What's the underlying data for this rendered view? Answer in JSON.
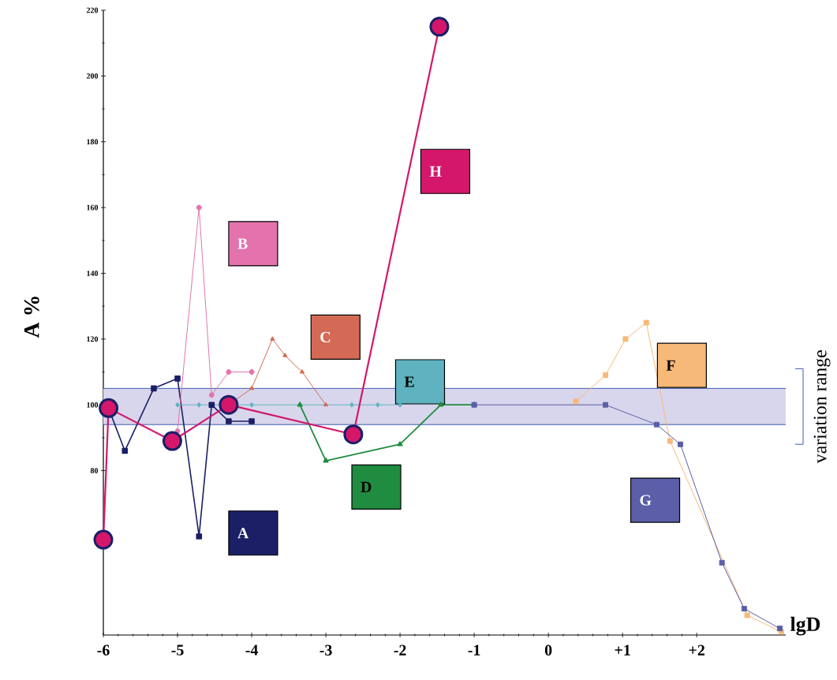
{
  "chart_data": {
    "type": "line",
    "xlabel": "lgD",
    "ylabel": "A %",
    "xlim": [
      -6,
      3.2
    ],
    "ylim": [
      30,
      220
    ],
    "xticks": [
      -6,
      -5,
      -4,
      -3,
      -2,
      -1,
      0,
      {
        "value": 1,
        "label": "+1"
      },
      {
        "value": 2,
        "label": "+2"
      }
    ],
    "yticks": [
      80,
      100,
      120,
      140,
      160,
      180,
      200,
      220
    ],
    "bands": [
      {
        "axis": "y",
        "from": 94,
        "to": 105,
        "label": "variation range",
        "color": "#d8d6ec"
      }
    ],
    "ref_lines": [
      {
        "axis": "y",
        "value": 94,
        "color": "#3a5bb5"
      },
      {
        "axis": "y",
        "value": 105,
        "color": "#3a5bb5"
      }
    ],
    "series": [
      {
        "name": "A",
        "color": "#1b1f66",
        "marker": "square",
        "x": [
          -5.93,
          -5.71,
          -5.32,
          -5.0,
          -4.71,
          -4.54,
          -4.31,
          -4.0
        ],
        "values": [
          99,
          86,
          105,
          108,
          60,
          100,
          95,
          95
        ]
      },
      {
        "name": "B",
        "color": "#e473ad",
        "marker": "circle",
        "x": [
          -5.0,
          -4.71,
          -4.54,
          -4.31,
          -4.0
        ],
        "values": [
          92,
          160,
          103,
          110,
          110
        ]
      },
      {
        "name": "C",
        "color": "#d46a55",
        "marker": "triangle",
        "x": [
          -4.31,
          -4.0,
          -3.72,
          -3.55,
          -3.32,
          -3.0
        ],
        "values": [
          100,
          105,
          120,
          115,
          110,
          100
        ]
      },
      {
        "name": "D",
        "color": "#1f8c3f",
        "marker": "triangle",
        "x": [
          -3.35,
          -3.0,
          -2.0,
          -1.45,
          -1.0
        ],
        "values": [
          100,
          83,
          88,
          100,
          100
        ]
      },
      {
        "name": "E",
        "color": "#5fb3c0",
        "marker": "diamond",
        "x": [
          -5.0,
          -4.71,
          -4.0,
          -2.65,
          -2.3,
          -2.0
        ],
        "values": [
          100,
          100,
          100,
          100,
          100,
          100
        ]
      },
      {
        "name": "F",
        "color": "#f7b978",
        "marker": "square",
        "x": [
          0.37,
          0.77,
          1.04,
          1.32,
          1.64,
          2.68,
          3.14
        ],
        "values": [
          101,
          109,
          120,
          125,
          89,
          36,
          31
        ]
      },
      {
        "name": "G",
        "color": "#5a5fa8",
        "marker": "square",
        "x": [
          -1.0,
          0.77,
          1.46,
          1.78,
          2.34,
          2.64,
          3.12
        ],
        "values": [
          100,
          100,
          94,
          88,
          52,
          38,
          32
        ]
      },
      {
        "name": "H",
        "color": "#d4176b",
        "marker": "circle",
        "x": [
          -6.0,
          -5.93,
          -5.07,
          -4.31,
          -2.63,
          -1.47
        ],
        "values": [
          59,
          99,
          89,
          100,
          91,
          215
        ]
      }
    ]
  }
}
